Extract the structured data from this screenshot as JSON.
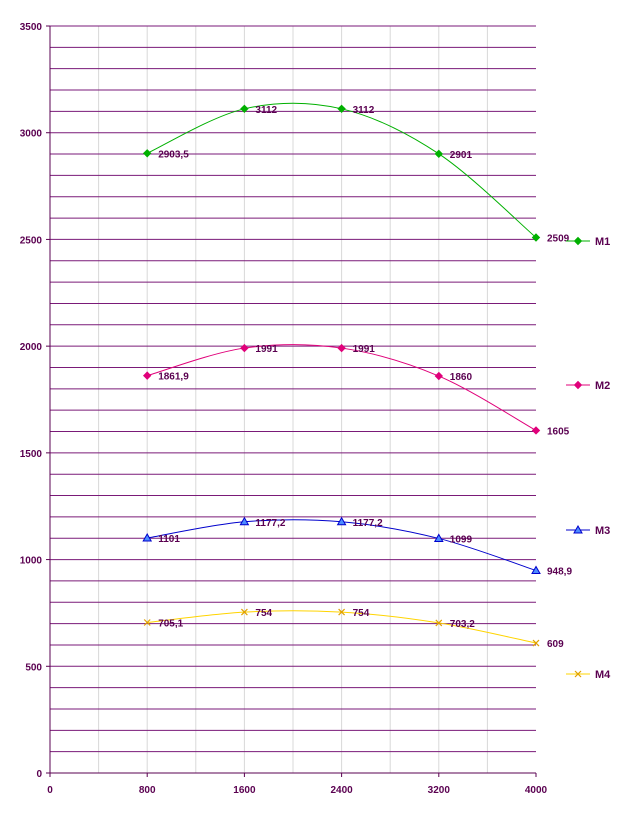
{
  "chart_data": {
    "type": "line",
    "title": "",
    "xlabel": "",
    "ylabel": "",
    "x": [
      800,
      1600,
      2400,
      3200,
      4000
    ],
    "xlim": [
      0,
      4000
    ],
    "ylim": [
      0,
      3500
    ],
    "xticks": [
      "0",
      "800",
      "1600",
      "2400",
      "3200",
      "4000"
    ],
    "yticks": [
      "0",
      "500",
      "1000",
      "1500",
      "2000",
      "2500",
      "3000",
      "3500"
    ],
    "grid": true,
    "legend_position": "right",
    "series": [
      {
        "name": "M1",
        "color": "#00b000",
        "marker": "diamond",
        "values": [
          2903.5,
          3112,
          3112,
          2901,
          2509
        ],
        "labels": [
          "2903,5",
          "3112",
          "3112",
          "2901",
          "2509"
        ]
      },
      {
        "name": "M2",
        "color": "#e0007a",
        "marker": "diamond",
        "values": [
          1861.9,
          1991,
          1991,
          1860,
          1605
        ],
        "labels": [
          "1861,9",
          "1991",
          "1991",
          "1860",
          "1605"
        ]
      },
      {
        "name": "M3",
        "color": "#0000cc",
        "marker": "triangle",
        "values": [
          1101,
          1177.2,
          1177.2,
          1099,
          948.9
        ],
        "labels": [
          "1101",
          "1177,2",
          "1177,2",
          "1099",
          "948,9"
        ]
      },
      {
        "name": "M4",
        "color": "#ffd400",
        "marker": "x",
        "values": [
          705.1,
          754,
          754,
          703.2,
          609
        ],
        "labels": [
          "705,1",
          "754",
          "754",
          "703,2",
          "609"
        ]
      }
    ]
  }
}
